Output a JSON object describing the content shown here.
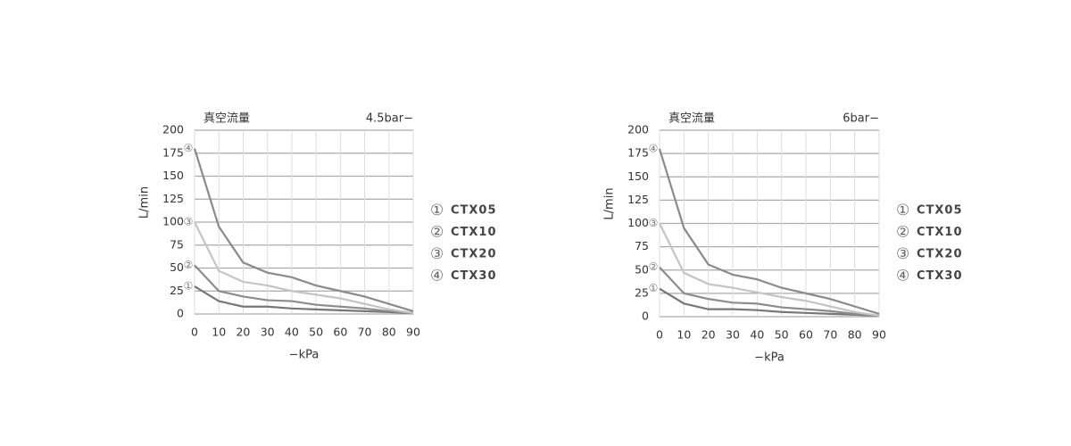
{
  "chart_data": [
    {
      "type": "line",
      "title": "真空流量",
      "subtitle": "4.5bar−",
      "x_label": "−kPa",
      "y_label": "L/min",
      "x": [
        0,
        10,
        20,
        30,
        40,
        50,
        60,
        70,
        80,
        90
      ],
      "xlim": [
        0,
        90
      ],
      "xticks": [
        0,
        10,
        20,
        30,
        40,
        50,
        60,
        70,
        80,
        90
      ],
      "ylim": [
        0,
        200
      ],
      "yticks": [
        0,
        25,
        50,
        75,
        100,
        125,
        150,
        175,
        200
      ],
      "grid": true,
      "series": [
        {
          "name": "CTX05",
          "marker": "①",
          "color": "#777777",
          "values": [
            30,
            14,
            8,
            8,
            6,
            5,
            4,
            3,
            2,
            1
          ]
        },
        {
          "name": "CTX10",
          "marker": "②",
          "color": "#8c8c8c",
          "values": [
            53,
            25,
            19,
            15,
            14,
            10,
            8,
            6,
            3,
            1
          ]
        },
        {
          "name": "CTX20",
          "marker": "③",
          "color": "#c4c4c4",
          "values": [
            100,
            47,
            35,
            31,
            25,
            21,
            17,
            11,
            5,
            1
          ]
        },
        {
          "name": "CTX30",
          "marker": "④",
          "color": "#8a8a8a",
          "values": [
            180,
            95,
            56,
            45,
            40,
            31,
            25,
            19,
            11,
            3
          ]
        }
      ]
    },
    {
      "type": "line",
      "title": "真空流量",
      "subtitle": "6bar−",
      "x_label": "−kPa",
      "y_label": "L/min",
      "x": [
        0,
        10,
        20,
        30,
        40,
        50,
        60,
        70,
        80,
        90
      ],
      "xlim": [
        0,
        90
      ],
      "xticks": [
        0,
        10,
        20,
        30,
        40,
        50,
        60,
        70,
        80,
        90
      ],
      "ylim": [
        0,
        200
      ],
      "yticks": [
        0,
        25,
        50,
        75,
        100,
        125,
        150,
        175,
        200
      ],
      "grid": true,
      "series": [
        {
          "name": "CTX05",
          "marker": "①",
          "color": "#777777",
          "values": [
            30,
            14,
            8,
            8,
            7,
            5,
            4,
            3,
            2,
            1
          ]
        },
        {
          "name": "CTX10",
          "marker": "②",
          "color": "#8c8c8c",
          "values": [
            53,
            25,
            19,
            15,
            14,
            10,
            8,
            6,
            3,
            1
          ]
        },
        {
          "name": "CTX20",
          "marker": "③",
          "color": "#c4c4c4",
          "values": [
            100,
            47,
            35,
            31,
            26,
            21,
            17,
            11,
            5,
            1
          ]
        },
        {
          "name": "CTX30",
          "marker": "④",
          "color": "#8a8a8a",
          "values": [
            180,
            95,
            56,
            45,
            40,
            31,
            25,
            19,
            11,
            3
          ]
        }
      ]
    }
  ]
}
